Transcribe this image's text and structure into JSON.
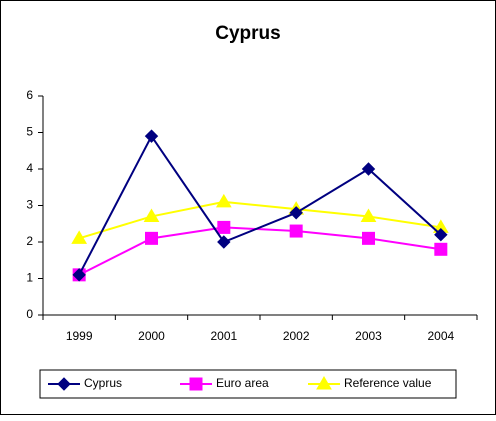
{
  "chart_data": {
    "type": "line",
    "title": "Cyprus",
    "categories": [
      "1999",
      "2000",
      "2001",
      "2002",
      "2003",
      "2004"
    ],
    "series": [
      {
        "name": "Cyprus",
        "color": "#000080",
        "marker": "diamond",
        "values": [
          1.1,
          4.9,
          2.0,
          2.8,
          4.0,
          2.2
        ]
      },
      {
        "name": "Euro area",
        "color": "#ff00ff",
        "marker": "square",
        "values": [
          1.1,
          2.1,
          2.4,
          2.3,
          2.1,
          1.8
        ]
      },
      {
        "name": "Reference value",
        "color": "#ffff00",
        "marker": "triangle",
        "values": [
          2.1,
          2.7,
          3.1,
          2.9,
          2.7,
          2.4
        ]
      }
    ],
    "ylim": [
      0,
      6
    ],
    "yticks": [
      0,
      1,
      2,
      3,
      4,
      5,
      6
    ],
    "grid": false,
    "legend": "bottom"
  }
}
